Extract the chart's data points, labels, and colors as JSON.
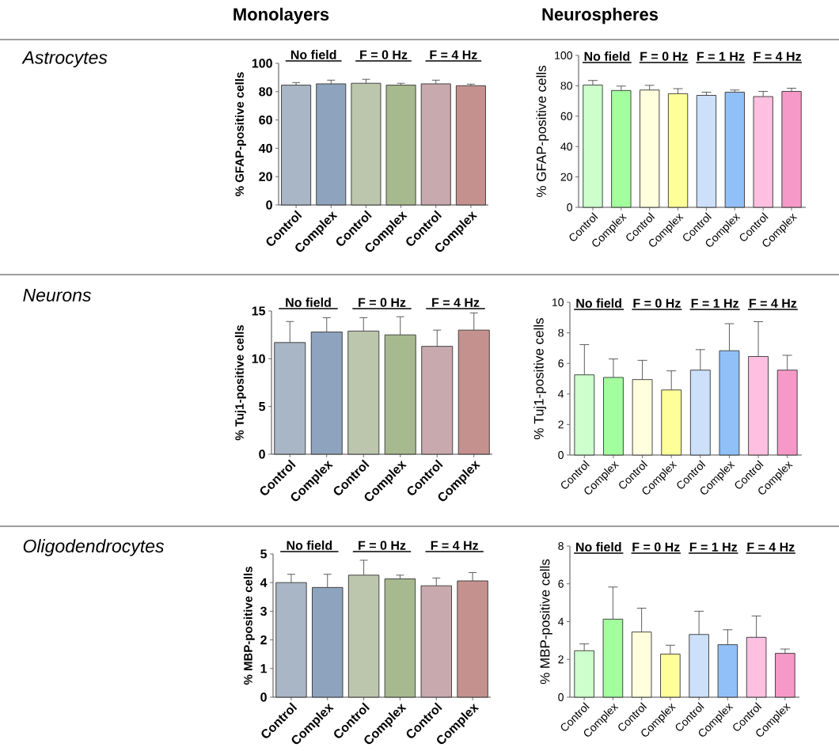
{
  "chart_data": [
    {
      "type": "bar",
      "title": "Monolayers",
      "ylabel": "% GFAP-positive cells",
      "categories": [
        "Control",
        "Complex",
        "Control",
        "Complex",
        "Control",
        "Complex"
      ],
      "values": [
        84.6,
        85.5,
        85.9,
        84.6,
        85.5,
        84.2
      ],
      "errors": [
        [
          84.6,
          86.4
        ],
        [
          85.5,
          88.1
        ],
        [
          85.9,
          88.7
        ],
        [
          84.6,
          85.9
        ],
        [
          85.5,
          88.1
        ],
        [
          84.2,
          85.3
        ]
      ],
      "colors": [
        "#a9b6c6",
        "#8ea3bd",
        "#bcc6ac",
        "#a7b98e",
        "#c8a9ad",
        "#c5918f"
      ],
      "ylim": [
        0,
        100
      ],
      "yticks": [
        0,
        20,
        40,
        60,
        80,
        100
      ],
      "annotations": [
        "No field",
        "F = 0 Hz",
        "F = 4 Hz"
      ]
    },
    {
      "type": "bar",
      "title": "Neurospheres",
      "ylabel": "% GFAP-positive cells",
      "categories": [
        "Control",
        "Complex",
        "Control",
        "Complex",
        "Control",
        "Complex",
        "Control",
        "Complex"
      ],
      "values": [
        80.5,
        76.9,
        77.2,
        74.8,
        73.7,
        75.8,
        72.9,
        76.3
      ],
      "errors": [
        [
          80.5,
          83.5
        ],
        [
          76.9,
          79.8
        ],
        [
          77.2,
          80.3
        ],
        [
          74.8,
          78.1
        ],
        [
          73.7,
          75.8
        ],
        [
          75.8,
          77.2
        ],
        [
          72.9,
          76.3
        ],
        [
          76.3,
          78.4
        ]
      ],
      "colors": [
        "#ccffcc",
        "#a3ff9e",
        "#ffffdd",
        "#ffff99",
        "#cce0fa",
        "#91c0f8",
        "#ffbfe0",
        "#f799c8"
      ],
      "ylim": [
        0,
        100
      ],
      "yticks": [
        0,
        20,
        40,
        60,
        80,
        100
      ],
      "annotations": [
        "No field",
        "F = 0 Hz",
        "F = 1 Hz",
        "F = 4 Hz"
      ]
    },
    {
      "type": "bar",
      "ylabel": "% Tuj1-positive cells",
      "categories": [
        "Control",
        "Complex",
        "Control",
        "Complex",
        "Control",
        "Complex"
      ],
      "values": [
        11.7,
        12.8,
        12.9,
        12.5,
        11.3,
        13.0
      ],
      "errors": [
        [
          11.7,
          13.9
        ],
        [
          12.8,
          14.3
        ],
        [
          12.9,
          14.3
        ],
        [
          12.5,
          14.4
        ],
        [
          11.3,
          13.0
        ],
        [
          13.0,
          14.8
        ]
      ],
      "colors": [
        "#a9b6c6",
        "#8ea3bd",
        "#bcc6ac",
        "#a7b98e",
        "#c8a9ad",
        "#c5918f"
      ],
      "ylim": [
        0,
        15
      ],
      "yticks": [
        0,
        5,
        10,
        15
      ],
      "annotations": [
        "No field",
        "F = 0 Hz",
        "F = 4 Hz"
      ]
    },
    {
      "type": "bar",
      "ylabel": "% Tuj1-positive cells",
      "categories": [
        "Control",
        "Complex",
        "Control",
        "Complex",
        "Control",
        "Complex",
        "Control",
        "Complex"
      ],
      "values": [
        5.25,
        5.08,
        4.94,
        4.26,
        5.56,
        6.83,
        6.45,
        5.56
      ],
      "errors": [
        [
          5.25,
          7.23
        ],
        [
          5.08,
          6.29
        ],
        [
          4.94,
          6.2
        ],
        [
          4.26,
          5.51
        ],
        [
          5.56,
          6.9
        ],
        [
          6.83,
          8.6
        ],
        [
          6.45,
          8.73
        ],
        [
          5.56,
          6.53
        ]
      ],
      "colors": [
        "#ccffcc",
        "#a3ff9e",
        "#ffffdd",
        "#ffff99",
        "#cce0fa",
        "#91c0f8",
        "#ffbfe0",
        "#f799c8"
      ],
      "ylim": [
        0,
        10
      ],
      "yticks": [
        0,
        2,
        4,
        6,
        8,
        10
      ],
      "annotations": [
        "No field",
        "F = 0 Hz",
        "F = 1 Hz",
        "F = 4 Hz"
      ]
    },
    {
      "type": "bar",
      "ylabel": "% MBP-positive cells",
      "categories": [
        "Control",
        "Complex",
        "Control",
        "Complex",
        "Control",
        "Complex"
      ],
      "values": [
        4.0,
        3.83,
        4.26,
        4.13,
        3.89,
        4.06
      ],
      "errors": [
        [
          4.0,
          4.29
        ],
        [
          3.83,
          4.29
        ],
        [
          4.26,
          4.78
        ],
        [
          4.13,
          4.26
        ],
        [
          3.89,
          4.16
        ],
        [
          4.06,
          4.35
        ]
      ],
      "colors": [
        "#a9b6c6",
        "#8ea3bd",
        "#bcc6ac",
        "#a7b98e",
        "#c8a9ad",
        "#c5918f"
      ],
      "ylim": [
        0,
        5
      ],
      "yticks": [
        0,
        1,
        2,
        3,
        4,
        5
      ],
      "annotations": [
        "No field",
        "F = 0 Hz",
        "F = 4 Hz"
      ]
    },
    {
      "type": "bar",
      "ylabel": "% MBP-positive cells",
      "categories": [
        "Control",
        "Complex",
        "Control",
        "Complex",
        "Control",
        "Complex",
        "Control",
        "Complex"
      ],
      "values": [
        2.46,
        4.13,
        3.45,
        2.28,
        3.32,
        2.78,
        3.17,
        2.32
      ],
      "errors": [
        [
          2.46,
          2.82
        ],
        [
          4.13,
          5.83
        ],
        [
          3.45,
          4.71
        ],
        [
          2.28,
          2.75
        ],
        [
          3.32,
          4.55
        ],
        [
          2.78,
          3.57
        ],
        [
          3.17,
          4.3
        ],
        [
          2.32,
          2.55
        ]
      ],
      "colors": [
        "#ccffcc",
        "#a3ff9e",
        "#ffffdd",
        "#ffff99",
        "#cce0fa",
        "#91c0f8",
        "#ffbfe0",
        "#f799c8"
      ],
      "ylim": [
        0,
        8
      ],
      "yticks": [
        0,
        2,
        4,
        6,
        8
      ],
      "annotations": [
        "No field",
        "F = 0 Hz",
        "F = 1 Hz",
        "F = 4 Hz"
      ]
    },
    {
      "type": "other",
      "annotations": [
        "Astrocytes",
        "Neurons",
        "Oligodendrocytes"
      ]
    }
  ]
}
